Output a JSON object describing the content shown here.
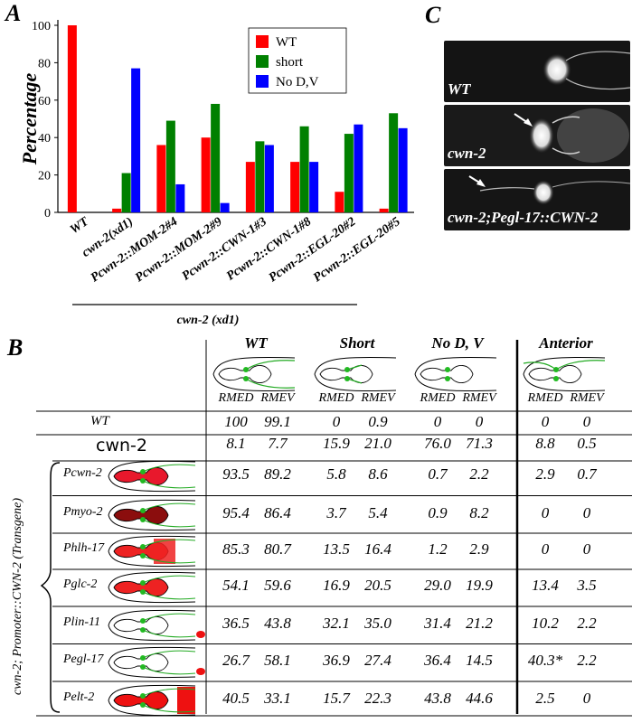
{
  "panel_letters": {
    "a": "A",
    "b": "B",
    "c": "C"
  },
  "chart_data": {
    "type": "bar",
    "title": "",
    "ylabel": "Percentage",
    "xlabel": "",
    "ylim": [
      0,
      100
    ],
    "yticks": [
      0,
      20,
      40,
      60,
      80,
      100
    ],
    "group_label": "cwn-2 (xd1)",
    "categories": [
      "WT",
      "cwn-2(xd1)",
      "Pcwn-2::MOM-2#4",
      "Pcwn-2::MOM-2#9",
      "Pcwn-2::CWN-1#3",
      "Pcwn-2::CWN-1#8",
      "Pcwn-2::EGL-20#2",
      "Pcwn-2::EGL-20#5"
    ],
    "series": [
      {
        "name": "WT",
        "color": "#ff0000",
        "values": [
          100,
          2,
          36,
          40,
          27,
          27,
          11,
          2
        ]
      },
      {
        "name": "short",
        "color": "#008000",
        "values": [
          0,
          21,
          49,
          58,
          38,
          46,
          42,
          53
        ]
      },
      {
        "name": "No D,V",
        "color": "#0000ff",
        "values": [
          0,
          77,
          15,
          5,
          36,
          27,
          47,
          45
        ]
      }
    ],
    "legend_position": "top-right",
    "grid": false
  },
  "micrographs": [
    {
      "label": "WT"
    },
    {
      "label": "cwn-2"
    },
    {
      "label": "cwn-2;Pegl-17::CWN-2"
    }
  ],
  "table": {
    "side_label": "cwn-2; Promoter::CWN-2 (Transgene)",
    "groups": [
      "WT",
      "Short",
      "No D, V",
      "Anterior"
    ],
    "subheaders": [
      "RMED",
      "RMEV"
    ],
    "rows": [
      {
        "label": "WT",
        "values": [
          "100",
          "99.1",
          "0",
          "0.9",
          "0",
          "0",
          "0",
          "0"
        ]
      },
      {
        "label": "cwn-2",
        "values": [
          "8.1",
          "7.7",
          "15.9",
          "21.0",
          "76.0",
          "71.3",
          "8.8",
          "0.5"
        ]
      },
      {
        "label": "Pcwn-2",
        "values": [
          "93.5",
          "89.2",
          "5.8",
          "8.6",
          "0.7",
          "2.2",
          "2.9",
          "0.7"
        ]
      },
      {
        "label": "Pmyo-2",
        "values": [
          "95.4",
          "86.4",
          "3.7",
          "5.4",
          "0.9",
          "8.2",
          "0",
          "0"
        ]
      },
      {
        "label": "Phlh-17",
        "values": [
          "85.3",
          "80.7",
          "13.5",
          "16.4",
          "1.2",
          "2.9",
          "0",
          "0"
        ]
      },
      {
        "label": "Pglc-2",
        "values": [
          "54.1",
          "59.6",
          "16.9",
          "20.5",
          "29.0",
          "19.9",
          "13.4",
          "3.5"
        ]
      },
      {
        "label": "Plin-11",
        "values": [
          "36.5",
          "43.8",
          "32.1",
          "35.0",
          "31.4",
          "21.2",
          "10.2",
          "2.2"
        ]
      },
      {
        "label": "Pegl-17",
        "values": [
          "26.7",
          "58.1",
          "36.9",
          "27.4",
          "36.4",
          "14.5",
          "40.3*",
          "2.2"
        ]
      },
      {
        "label": "Pelt-2",
        "values": [
          "40.5",
          "33.1",
          "15.7",
          "22.3",
          "43.8",
          "44.6",
          "2.5",
          "0"
        ]
      }
    ]
  }
}
